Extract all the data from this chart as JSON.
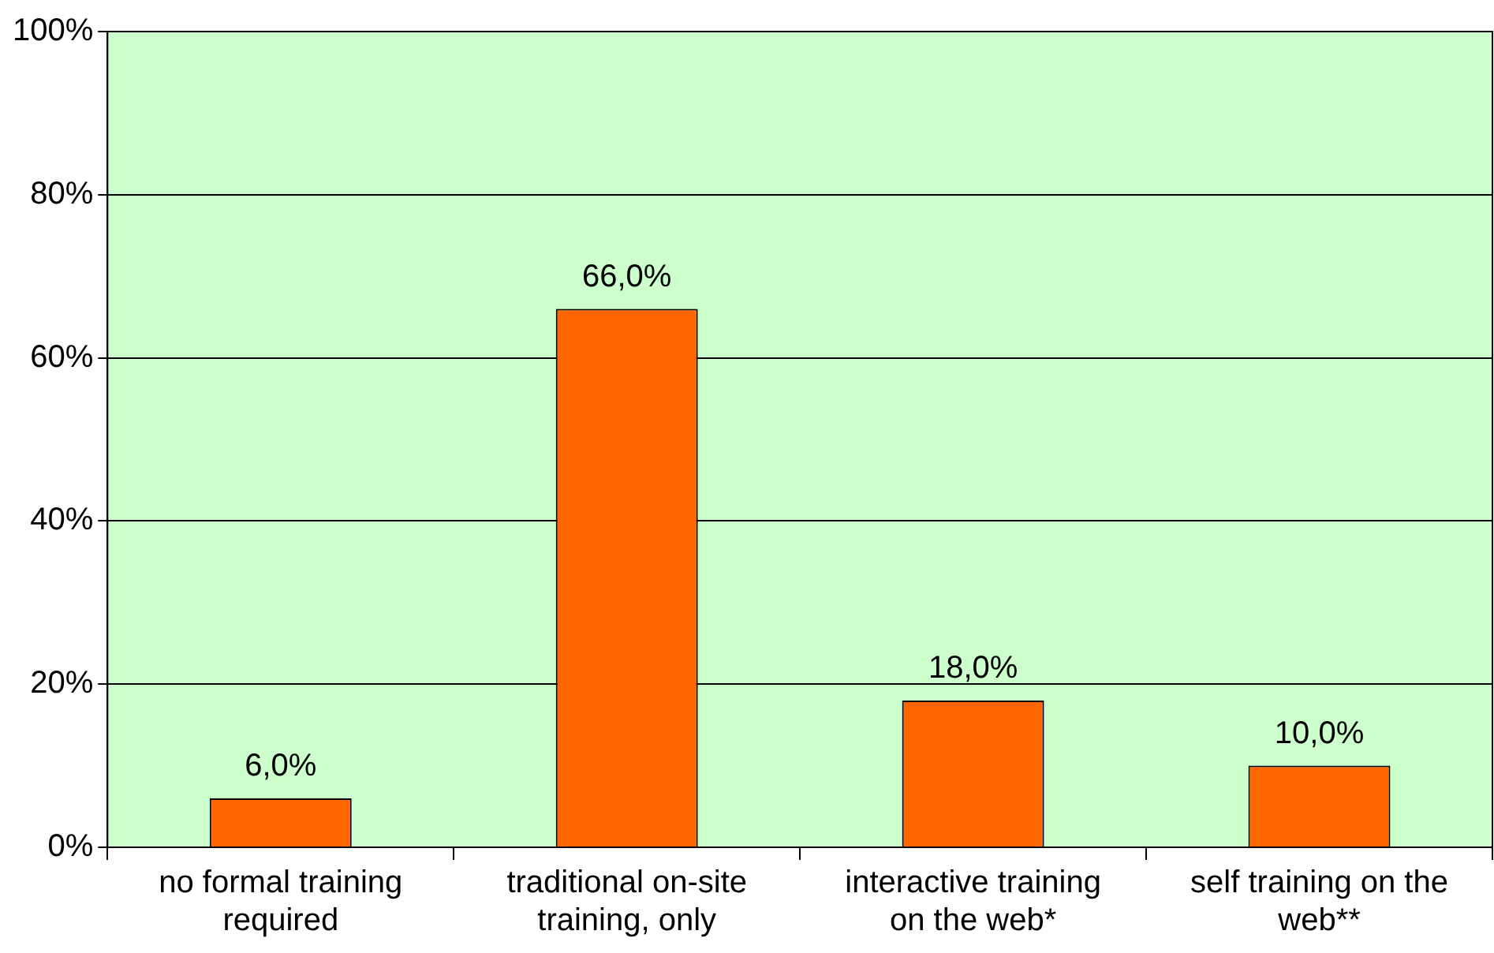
{
  "chart_data": {
    "type": "bar",
    "categories": [
      "no formal training required",
      "traditional on-site training, only",
      "interactive training on the web*",
      "self training on the web**"
    ],
    "values": [
      6,
      66,
      18,
      10
    ],
    "color": "#ff6600",
    "value_labels": [
      "6,0%",
      "66,0%",
      "18,0%",
      "10,0%"
    ],
    "ylim": [
      0,
      100
    ],
    "yticks": [
      {
        "value": 0,
        "label": "0%"
      },
      {
        "value": 20,
        "label": "20%"
      },
      {
        "value": 40,
        "label": "40%"
      },
      {
        "value": 60,
        "label": "60%"
      },
      {
        "value": 80,
        "label": "80%"
      },
      {
        "value": 100,
        "label": "100%"
      }
    ],
    "grid": "y",
    "legend": false
  }
}
